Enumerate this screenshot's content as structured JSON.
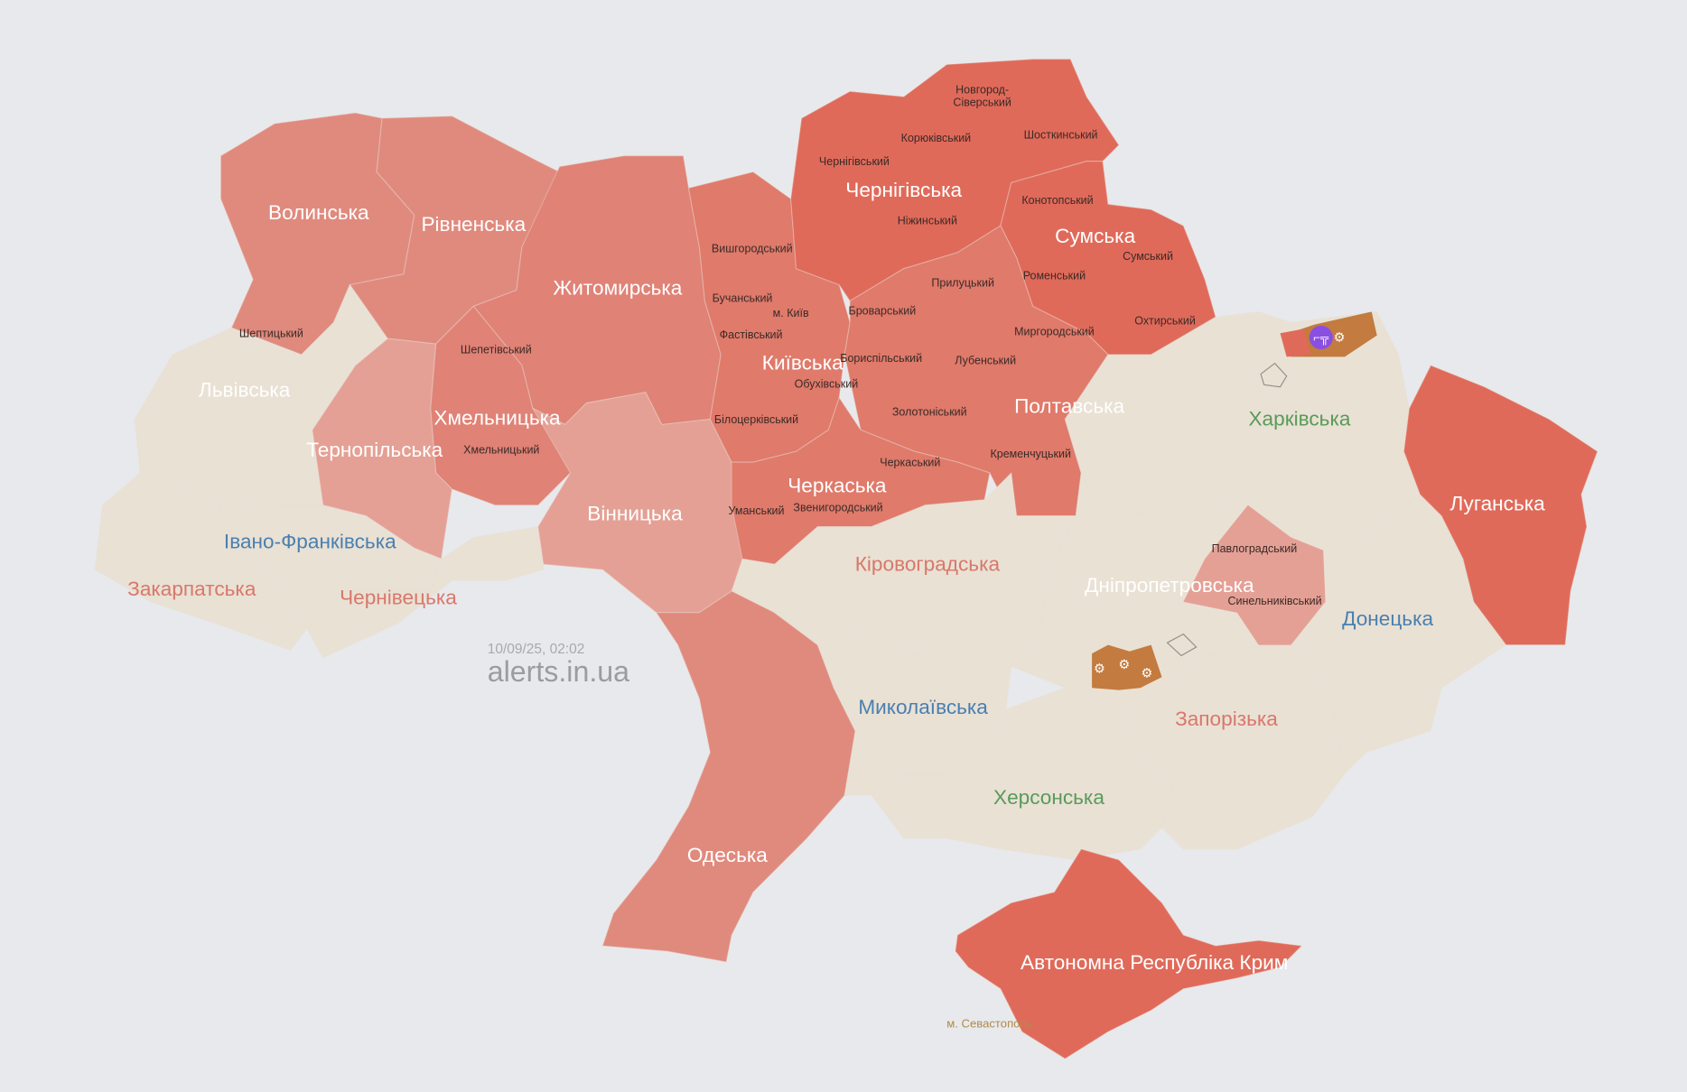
{
  "watermark": {
    "timestamp": "10/09/25, 02:02",
    "site": "alerts.in.ua"
  },
  "colors": {
    "background": "#e8e9ec",
    "alert_strong": "#e06a5a",
    "alert_medium": "#e07a6b",
    "alert_light": "#e08a7e",
    "alert_pale": "#e5a095",
    "no_alert": "#e9e1d4",
    "occupied": "#c37b3f",
    "artillery_marker": "#8a4fe0"
  },
  "oblasts": [
    {
      "id": "volyn",
      "name": "Волинська",
      "status": "alert",
      "fill": "#e08a7e",
      "label_color": "#ffffff"
    },
    {
      "id": "rivne",
      "name": "Рівненська",
      "status": "alert",
      "fill": "#e08a7e",
      "label_color": "#ffffff"
    },
    {
      "id": "zhytomyr",
      "name": "Житомирська",
      "status": "alert",
      "fill": "#e08276",
      "label_color": "#ffffff"
    },
    {
      "id": "khmelnytskyi",
      "name": "Хмельницька",
      "status": "alert",
      "fill": "#e08276",
      "label_color": "#ffffff"
    },
    {
      "id": "ternopil",
      "name": "Тернопільська",
      "status": "alert",
      "fill": "#e5a095",
      "label_color": "#ffffff"
    },
    {
      "id": "lviv",
      "name": "Львівська",
      "status": "none",
      "fill": "#e9e1d4",
      "label_color": "#ffffff"
    },
    {
      "id": "zakarpattia",
      "name": "Закарпатська",
      "status": "none",
      "fill": "#e9e1d4",
      "label_color": "#d9776b"
    },
    {
      "id": "ivano-frankivsk",
      "name": "Івано-Франківська",
      "status": "none",
      "fill": "#e9e1d4",
      "label_color": "#4a7fb0"
    },
    {
      "id": "chernivtsi",
      "name": "Чернівецька",
      "status": "none",
      "fill": "#e9e1d4",
      "label_color": "#d9776b"
    },
    {
      "id": "vinnytsia",
      "name": "Вінницька",
      "status": "alert",
      "fill": "#e5a095",
      "label_color": "#ffffff"
    },
    {
      "id": "kyiv",
      "name": "Київська",
      "status": "alert",
      "fill": "#e07a6b",
      "label_color": "#ffffff"
    },
    {
      "id": "chernihiv",
      "name": "Чернігівська",
      "status": "alert",
      "fill": "#e06a5a",
      "label_color": "#ffffff"
    },
    {
      "id": "sumy",
      "name": "Сумська",
      "status": "alert",
      "fill": "#e06a5a",
      "label_color": "#ffffff"
    },
    {
      "id": "poltava",
      "name": "Полтавська",
      "status": "alert",
      "fill": "#e07a6b",
      "label_color": "#ffffff"
    },
    {
      "id": "cherkasy",
      "name": "Черкаська",
      "status": "alert",
      "fill": "#e07a6b",
      "label_color": "#ffffff"
    },
    {
      "id": "kirovohrad",
      "name": "Кіровоградська",
      "status": "none",
      "fill": "#e9e1d4",
      "label_color": "#d9776b"
    },
    {
      "id": "odesa",
      "name": "Одеська",
      "status": "alert",
      "fill": "#e08a7e",
      "label_color": "#ffffff"
    },
    {
      "id": "mykolaiv",
      "name": "Миколаївська",
      "status": "none",
      "fill": "#e9e1d4",
      "label_color": "#4a7fb0"
    },
    {
      "id": "kherson",
      "name": "Херсонська",
      "status": "none",
      "fill": "#e9e1d4",
      "label_color": "#5a9a5a"
    },
    {
      "id": "zaporizhzhia",
      "name": "Запорізька",
      "status": "none",
      "fill": "#e9e1d4",
      "label_color": "#d9776b"
    },
    {
      "id": "dnipro",
      "name": "Дніпропетровська",
      "status": "partial",
      "fill": "#e9e1d4",
      "label_color": "#ffffff"
    },
    {
      "id": "kharkiv",
      "name": "Харківська",
      "status": "none",
      "fill": "#e9e1d4",
      "label_color": "#5a9a5a"
    },
    {
      "id": "donetsk",
      "name": "Донецька",
      "status": "none",
      "fill": "#e9e1d4",
      "label_color": "#4a7fb0"
    },
    {
      "id": "luhansk",
      "name": "Луганська",
      "status": "alert",
      "fill": "#e06a5a",
      "label_color": "#ffffff"
    },
    {
      "id": "crimea",
      "name": "Автономна Республіка Крим",
      "status": "alert",
      "fill": "#e06a5a",
      "label_color": "#ffffff"
    }
  ],
  "districts": [
    "Новгород-",
    "Сіверський",
    "Корюківський",
    "Шосткинський",
    "Чернігівський",
    "Конотопський",
    "Ніжинський",
    "Сумський",
    "Вишгородський",
    "Роменський",
    "Прилуцький",
    "Бучанський",
    "м. Київ",
    "Броварський",
    "Охтирський",
    "Миргородський",
    "Фастівський",
    "Шептицький",
    "Шепетівський",
    "Бориспільський",
    "Лубенський",
    "Обухівський",
    "Золотоніський",
    "Білоцерківський",
    "Кременчуцький",
    "Хмельницький",
    "Черкаський",
    "Уманський",
    "Звенигородський",
    "Павлоградський",
    "Синельниківський"
  ],
  "sevastopol": "м. Севастополь",
  "markers": [
    {
      "type": "artillery-icon",
      "region": "kharkiv"
    },
    {
      "type": "rifle-icon",
      "region": "kharkiv",
      "highlight": "#8a4fe0"
    },
    {
      "type": "artillery-icon",
      "region": "zaporizhzhia"
    },
    {
      "type": "artillery-icon",
      "region": "zaporizhzhia"
    },
    {
      "type": "artillery-icon",
      "region": "zaporizhzhia"
    }
  ]
}
